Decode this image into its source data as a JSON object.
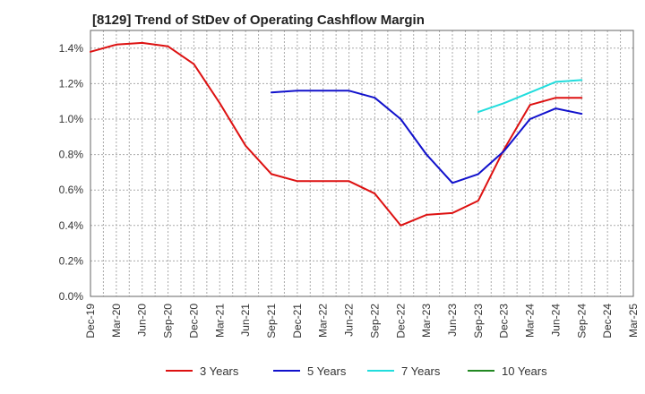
{
  "chart_data": {
    "type": "line",
    "title": "[8129]  Trend of StDev of Operating Cashflow Margin",
    "xlabel": "",
    "ylabel": "",
    "x": [
      "Dec-19",
      "Mar-20",
      "Jun-20",
      "Sep-20",
      "Dec-20",
      "Mar-21",
      "Jun-21",
      "Sep-21",
      "Dec-21",
      "Mar-22",
      "Jun-22",
      "Sep-22",
      "Dec-22",
      "Mar-23",
      "Jun-23",
      "Sep-23",
      "Dec-23",
      "Mar-24",
      "Jun-24",
      "Sep-24",
      "Dec-24",
      "Mar-25"
    ],
    "ylim": [
      0,
      1.5
    ],
    "yticks": [
      0.0,
      0.2,
      0.4,
      0.6,
      0.8,
      1.0,
      1.2,
      1.4
    ],
    "ytick_labels": [
      "0.0%",
      "0.2%",
      "0.4%",
      "0.6%",
      "0.8%",
      "1.0%",
      "1.2%",
      "1.4%"
    ],
    "grid": true,
    "legend_position": "bottom",
    "series": [
      {
        "name": "3 Years",
        "color": "#dd1111",
        "values": [
          1.38,
          1.42,
          1.43,
          1.41,
          1.31,
          1.09,
          0.85,
          0.69,
          0.65,
          0.65,
          0.65,
          0.58,
          0.4,
          0.46,
          0.47,
          0.54,
          0.83,
          1.08,
          1.12,
          1.12,
          null,
          null
        ]
      },
      {
        "name": "5 Years",
        "color": "#1111cc",
        "values": [
          null,
          null,
          null,
          null,
          null,
          null,
          null,
          1.15,
          1.16,
          1.16,
          1.16,
          1.12,
          1.0,
          0.8,
          0.64,
          0.69,
          0.82,
          1.0,
          1.06,
          1.03,
          null,
          null
        ]
      },
      {
        "name": "7 Years",
        "color": "#22dddd",
        "values": [
          null,
          null,
          null,
          null,
          null,
          null,
          null,
          null,
          null,
          null,
          null,
          null,
          null,
          null,
          null,
          1.04,
          1.09,
          1.15,
          1.21,
          1.22,
          null,
          null
        ]
      },
      {
        "name": "10 Years",
        "color": "#228822",
        "values": [
          null,
          null,
          null,
          null,
          null,
          null,
          null,
          null,
          null,
          null,
          null,
          null,
          null,
          null,
          null,
          null,
          null,
          null,
          null,
          null,
          null,
          null
        ]
      }
    ]
  }
}
